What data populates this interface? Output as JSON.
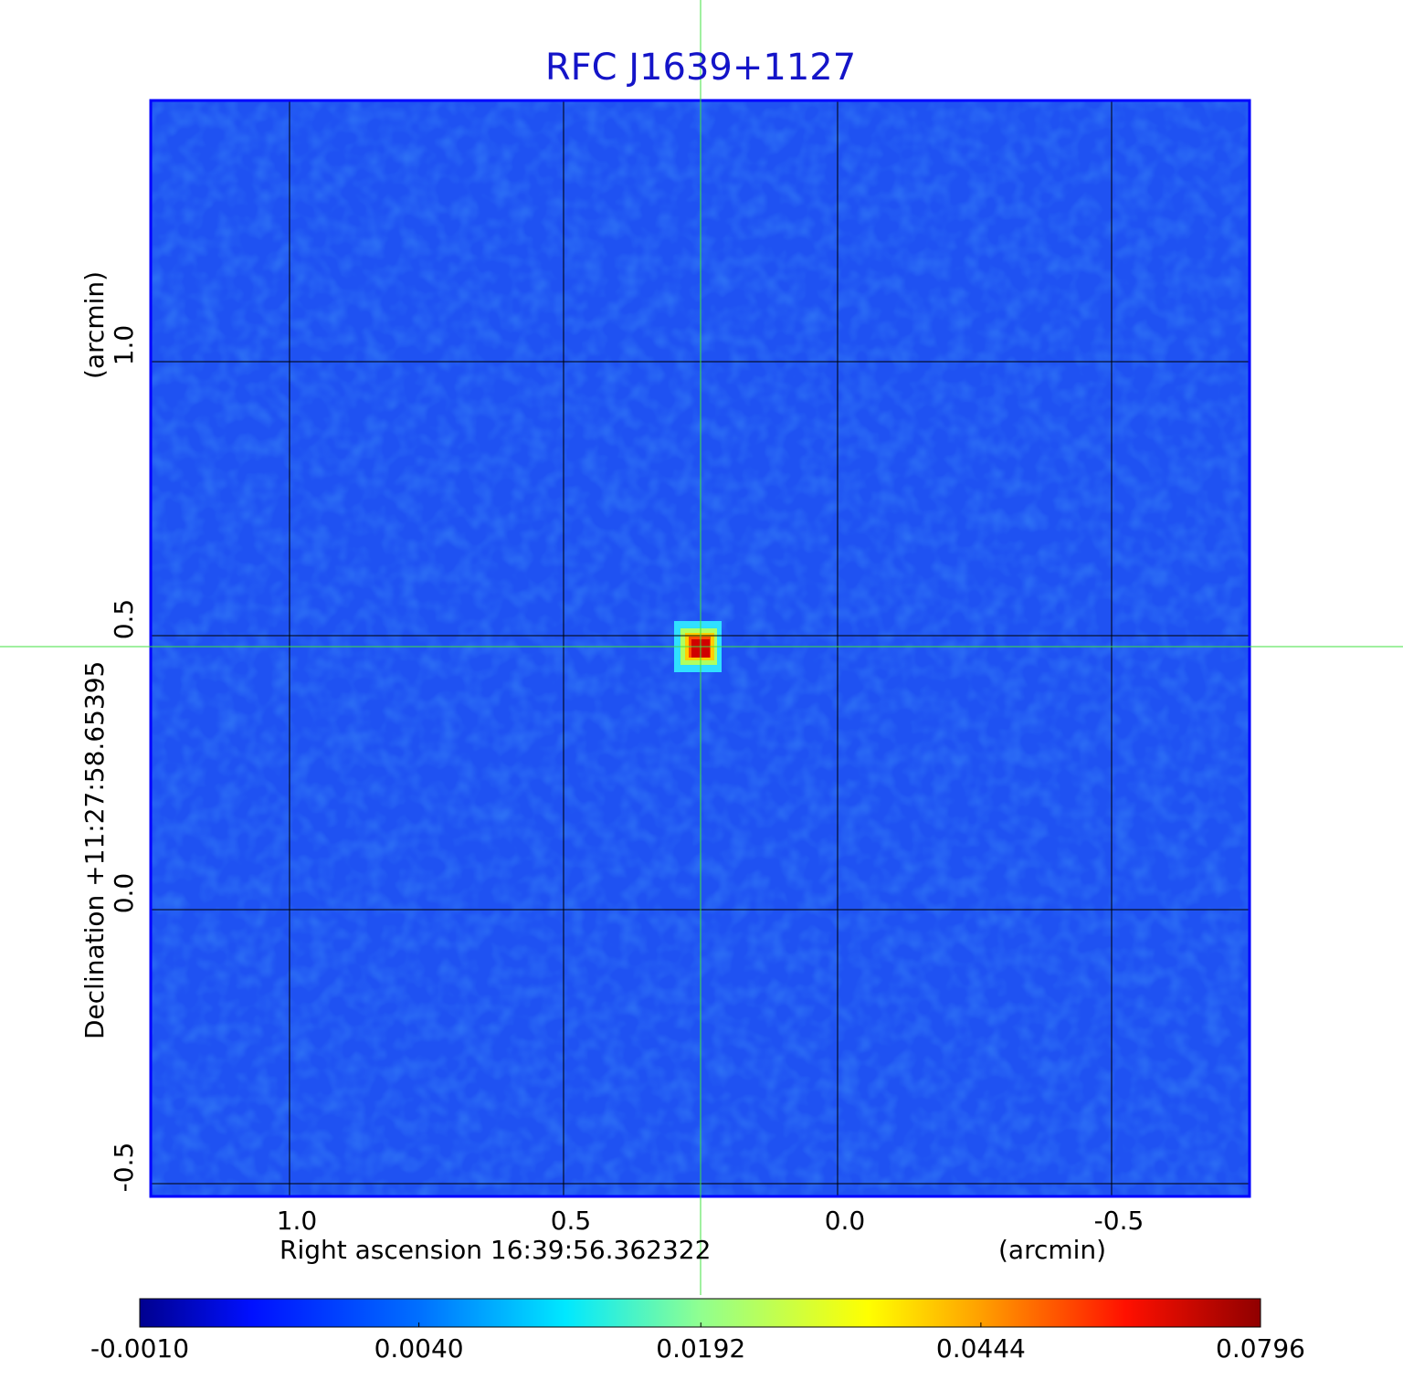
{
  "chart_data": {
    "type": "image",
    "title": "RFC J1639+1127",
    "x_label": "Right ascension  16:39:56.362322",
    "x_unit": "(arcmin)",
    "y_label": "Declination  +11:27:58.65395",
    "y_unit": "(arcmin)",
    "xlim": [
      1.2533,
      -0.7517
    ],
    "ylim": [
      -0.5233,
      1.4767
    ],
    "xticks": [
      {
        "value": 1.0,
        "label": "1.0"
      },
      0.5,
      {
        "value": 0.0,
        "label": "0.0"
      },
      -0.5
    ],
    "yticks": [
      {
        "value": 1.0,
        "label": "1.0"
      },
      0.5,
      {
        "value": 0.0,
        "label": "0.0"
      },
      -0.5
    ],
    "grid": true,
    "colorbar_lim": [
      -0.001,
      0.0796
    ],
    "colorbar_scale": "sqrt",
    "colorbar_ticks": [
      {
        "value": -0.001,
        "label": "-0.0010"
      },
      {
        "value": 0.004,
        "label": "0.0040"
      },
      {
        "value": 0.0192,
        "label": "0.0192"
      },
      {
        "value": 0.0444,
        "label": "0.0444"
      },
      {
        "value": 0.0796,
        "label": "0.0796"
      }
    ]
  }
}
